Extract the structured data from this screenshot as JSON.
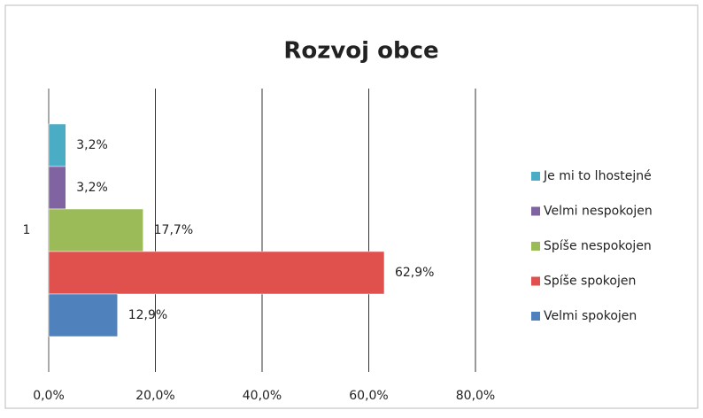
{
  "chart_data": {
    "type": "bar",
    "orientation": "horizontal",
    "title": "Rozvoj obce",
    "categories": [
      "1"
    ],
    "series": [
      {
        "name": "Je mi to lhostejné",
        "color": "#4bacc6",
        "values": [
          3.2
        ],
        "value_labels": [
          "3,2%"
        ]
      },
      {
        "name": "Velmi nespokojen",
        "color": "#8064a2",
        "values": [
          3.2
        ],
        "value_labels": [
          "3,2%"
        ]
      },
      {
        "name": "Spíše nespokojen",
        "color": "#9bbb59",
        "values": [
          17.7
        ],
        "value_labels": [
          "17,7%"
        ]
      },
      {
        "name": "Spíše spokojen",
        "color": "#e0504d",
        "values": [
          62.9
        ],
        "value_labels": [
          "62,9%"
        ]
      },
      {
        "name": "Velmi spokojen",
        "color": "#4f81bd",
        "values": [
          12.9
        ],
        "value_labels": [
          "12,9%"
        ]
      }
    ],
    "xlim": [
      0,
      80
    ],
    "xticks": [
      {
        "value": 0,
        "label": "0,0%"
      },
      {
        "value": 20,
        "label": "20,0%"
      },
      {
        "value": 40,
        "label": "40,0%"
      },
      {
        "value": 60,
        "label": "60,0%"
      },
      {
        "value": 80,
        "label": "80,0%"
      }
    ],
    "grid": true,
    "legend": "right"
  }
}
